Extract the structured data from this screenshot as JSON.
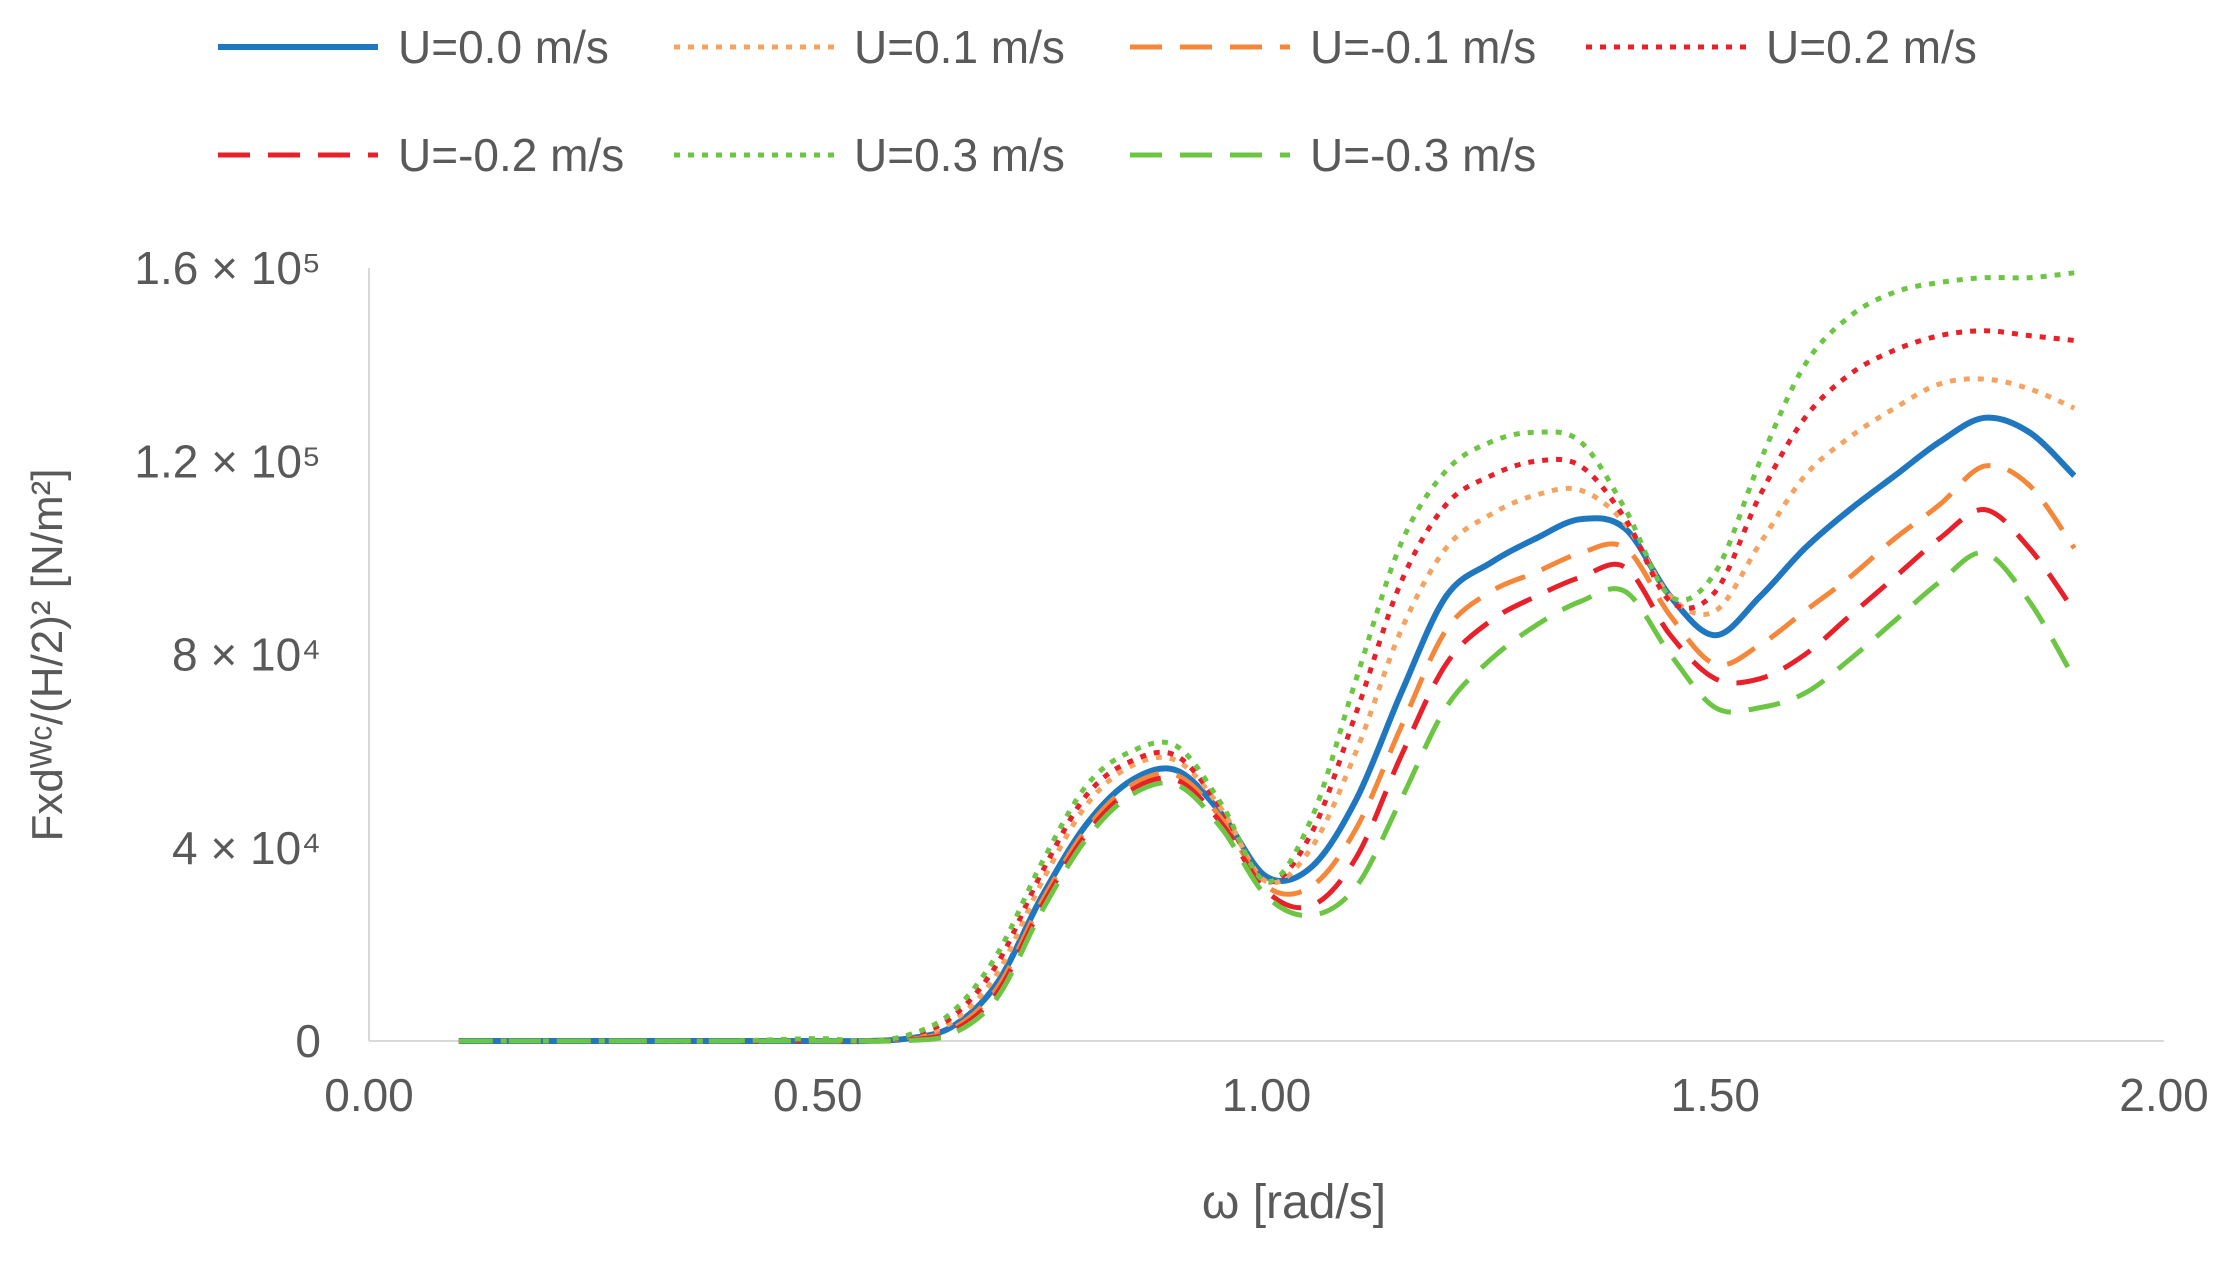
{
  "chart_data": {
    "type": "line",
    "xlabel": "ω [rad/s]",
    "ylabel": "Fxdᵂᶜ/(H/2)² [N/m²]",
    "xlim": [
      0,
      2
    ],
    "ylim": [
      0,
      160000
    ],
    "x_ticks": [
      0,
      0.5,
      1,
      1.5,
      2
    ],
    "x_tick_labels": [
      "0.00",
      "0.50",
      "1.00",
      "1.50",
      "2.00"
    ],
    "y_ticks": [
      0,
      40000,
      80000,
      120000,
      160000
    ],
    "y_tick_labels": [
      "0",
      "4 × 10⁴",
      "8 × 10⁴",
      "1.2 × 10⁵",
      "1.6 × 10⁵"
    ],
    "grid": false,
    "legend_position": "top",
    "x": [
      0.1,
      0.2,
      0.3,
      0.4,
      0.5,
      0.55,
      0.6,
      0.65,
      0.7,
      0.75,
      0.8,
      0.85,
      0.9,
      0.95,
      1.0,
      1.05,
      1.1,
      1.15,
      1.2,
      1.25,
      1.3,
      1.35,
      1.4,
      1.45,
      1.5,
      1.55,
      1.6,
      1.65,
      1.7,
      1.75,
      1.8,
      1.85,
      1.9
    ],
    "series": [
      {
        "name": "U=0.0 m/s",
        "color": "#1f77c0",
        "dash": "solid",
        "values": [
          0,
          0,
          0,
          0,
          0,
          0,
          500,
          3000,
          12000,
          30000,
          45000,
          54000,
          56000,
          47000,
          34000,
          36000,
          50000,
          72000,
          92000,
          99000,
          104000,
          108000,
          106000,
          92000,
          84000,
          92000,
          102000,
          110000,
          117000,
          124000,
          129000,
          126000,
          117000
        ]
      },
      {
        "name": "U=0.1 m/s",
        "color": "#f4a460",
        "dash": "dot",
        "values": [
          0,
          0,
          0,
          0,
          0,
          0,
          800,
          4000,
          14000,
          33000,
          49000,
          57000,
          58000,
          48000,
          33000,
          40000,
          60000,
          85000,
          102000,
          109000,
          113000,
          114000,
          107000,
          92000,
          89000,
          103000,
          117000,
          125000,
          131000,
          136000,
          137000,
          135000,
          131000
        ]
      },
      {
        "name": "U=-0.1 m/s",
        "color": "#f5873a",
        "dash": "dash",
        "values": [
          0,
          0,
          0,
          0,
          0,
          0,
          300,
          2500,
          11000,
          29000,
          44000,
          53000,
          55000,
          46000,
          32000,
          32000,
          44000,
          65000,
          85000,
          93000,
          97000,
          101000,
          102000,
          88000,
          78000,
          82000,
          89000,
          96000,
          104000,
          111000,
          119000,
          115000,
          102000
        ]
      },
      {
        "name": "U=0.2 m/s",
        "color": "#e8202a",
        "dash": "dot",
        "values": [
          0,
          0,
          0,
          0,
          0,
          0,
          1000,
          5000,
          16000,
          35000,
          51000,
          58000,
          59000,
          48000,
          33000,
          43000,
          68000,
          95000,
          111000,
          117000,
          120000,
          119000,
          108000,
          91000,
          93000,
          113000,
          129000,
          138000,
          143000,
          146000,
          147000,
          146000,
          145000
        ]
      },
      {
        "name": "U=-0.2 m/s",
        "color": "#e8202a",
        "dash": "dash",
        "values": [
          0,
          0,
          0,
          0,
          0,
          0,
          200,
          2000,
          10000,
          28000,
          43000,
          52000,
          54000,
          45000,
          31000,
          28000,
          38000,
          59000,
          78000,
          87000,
          92000,
          96000,
          98000,
          84000,
          75000,
          75000,
          80000,
          88000,
          96000,
          104000,
          110000,
          102000,
          89000
        ]
      },
      {
        "name": "U=0.3 m/s",
        "color": "#6cc644",
        "dash": "dot",
        "values": [
          0,
          0,
          0,
          0,
          500,
          0,
          1200,
          6000,
          18000,
          37000,
          53000,
          60000,
          61000,
          49000,
          33000,
          46000,
          75000,
          103000,
          118000,
          124000,
          126000,
          124000,
          110000,
          92000,
          97000,
          120000,
          140000,
          150000,
          155000,
          157000,
          158000,
          158000,
          159000
        ]
      },
      {
        "name": "U=-0.3 m/s",
        "color": "#6cc644",
        "dash": "dash",
        "values": [
          0,
          0,
          0,
          0,
          0,
          0,
          100,
          1500,
          9000,
          27000,
          42000,
          51000,
          53000,
          44000,
          30000,
          26000,
          32000,
          50000,
          69000,
          79000,
          86000,
          91000,
          93000,
          80000,
          69000,
          69000,
          72000,
          79000,
          87000,
          95000,
          101000,
          91000,
          75000
        ]
      }
    ]
  }
}
